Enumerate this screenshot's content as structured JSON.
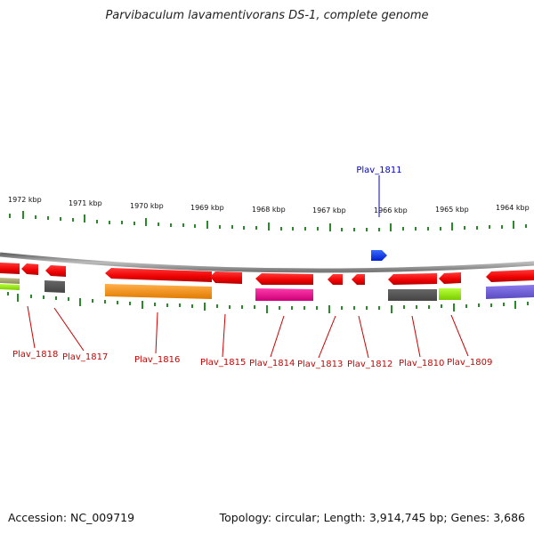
{
  "title": "Parvibaculum lavamentivorans DS-1, complete genome",
  "footer": {
    "accession": "Accession: NC_009719",
    "summary": "Topology: circular; Length: 3,914,745 bp; Genes: 3,686"
  },
  "scale_labels": [
    "1972 kbp",
    "1971 kbp",
    "1970 kbp",
    "1969 kbp",
    "1968 kbp",
    "1967 kbp",
    "1966 kbp",
    "1965 kbp",
    "1964 kbp"
  ],
  "genes_below": [
    "Plav_1818",
    "Plav_1817",
    "Plav_1816",
    "Plav_1815",
    "Plav_1814",
    "Plav_1813",
    "Plav_1812",
    "Plav_1810",
    "Plav_1809"
  ],
  "gene_above": "Plav_1811",
  "colors": {
    "gene": "#ff0000",
    "forward_gene": "#0033ff",
    "backbone": "#888888",
    "tick": "#2a8a2a",
    "label_below": "#cc0000",
    "label_above": "#0000cc"
  }
}
